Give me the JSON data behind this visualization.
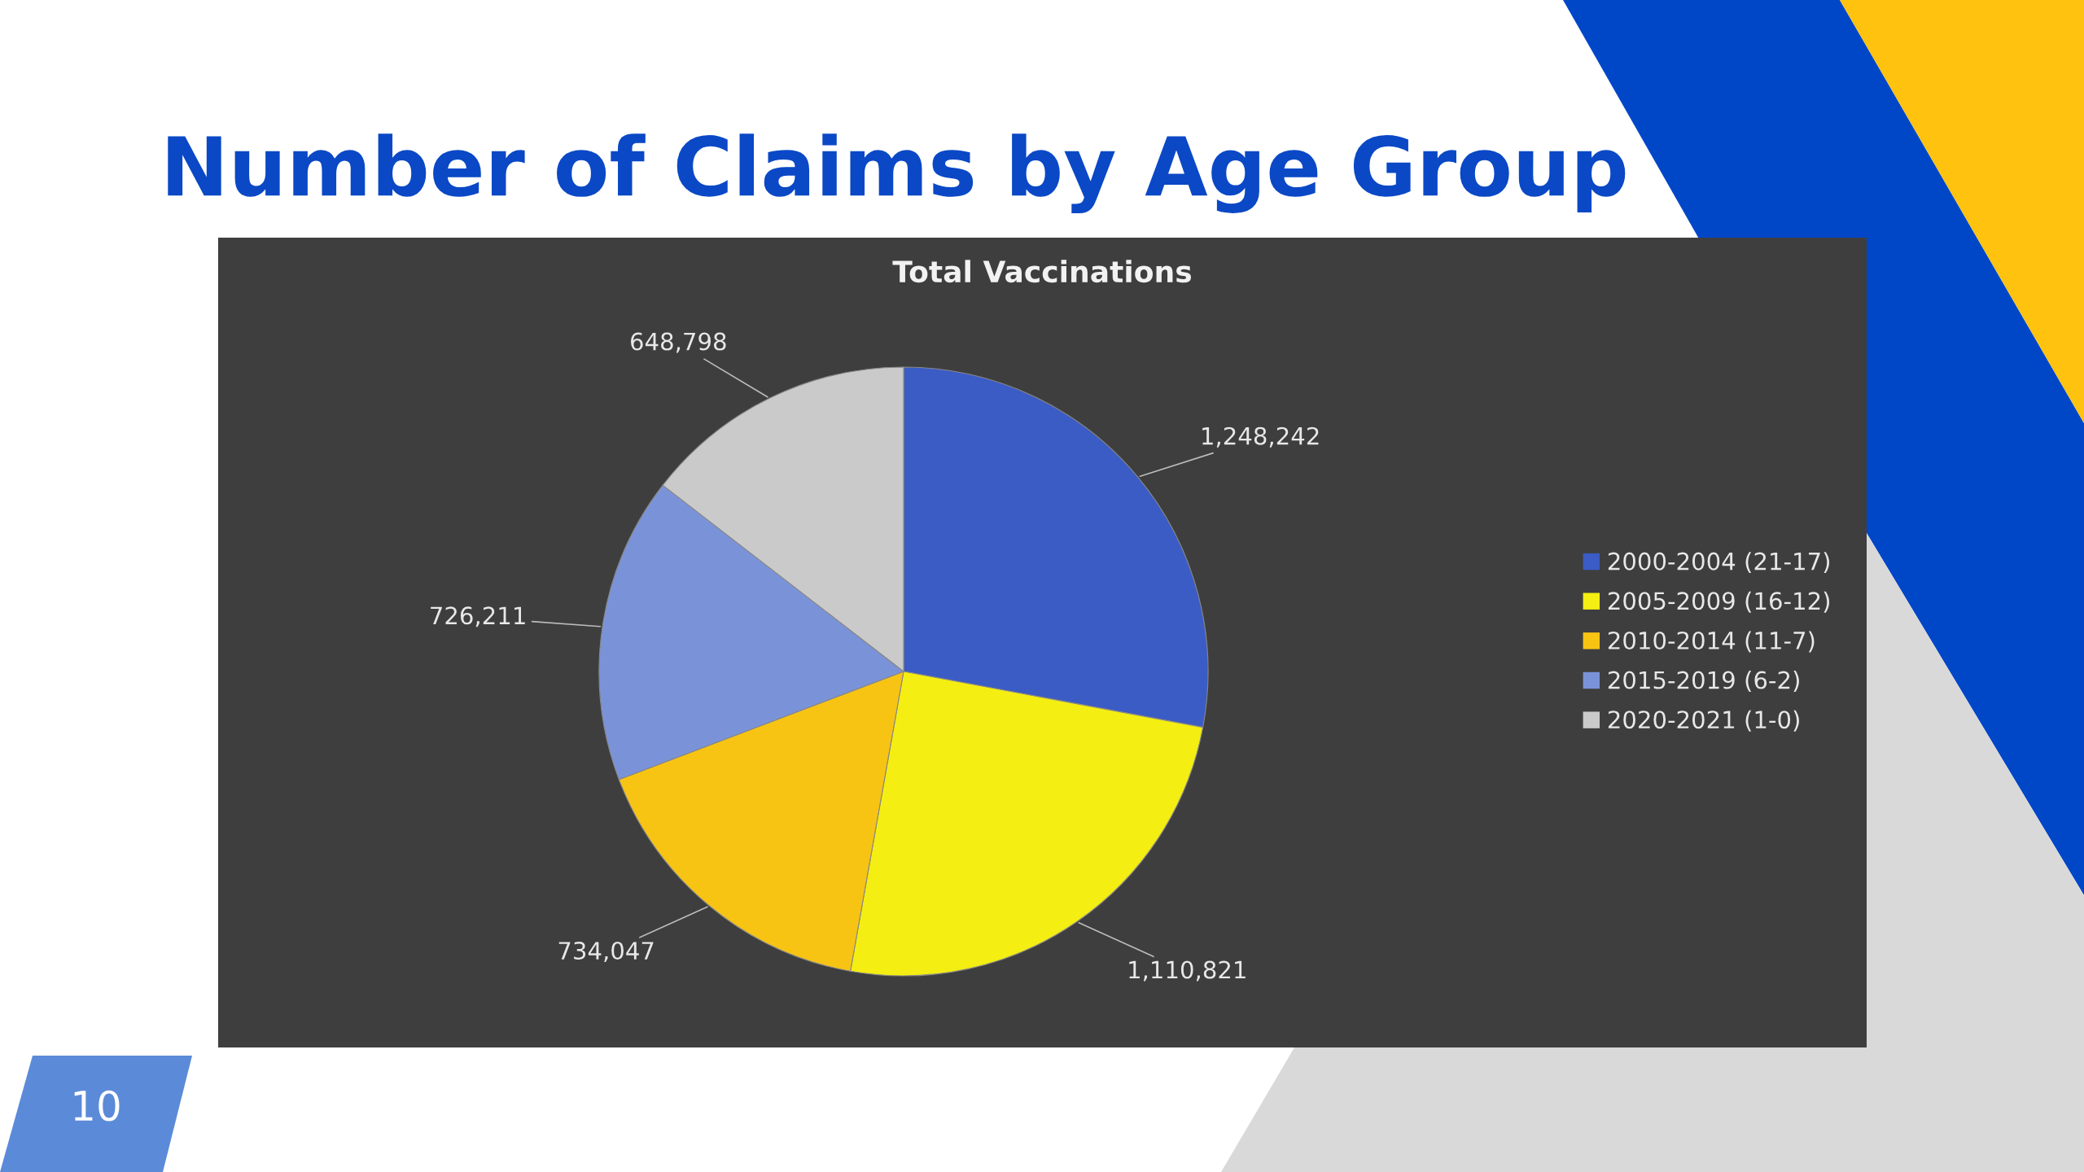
{
  "chart_data": {
    "type": "pie",
    "title": "Total Vaccinations",
    "subtitle": "Number of Claims by Age Group",
    "categories": [
      "2000-2004 (21-17)",
      "2005-2009 (16-12)",
      "2010-2014 (11-7)",
      "2015-2019 (6-2)",
      "2020-2021 (1-0)"
    ],
    "values": [
      1248242,
      1110821,
      734047,
      726211,
      648798
    ],
    "value_labels": [
      "1,248,242",
      "1,110,821",
      "734,047",
      "726,211",
      "648,798"
    ],
    "colors": [
      "#3b5cc4",
      "#f4ee12",
      "#f8c414",
      "#7a93d8",
      "#cacaca"
    ],
    "legend": "right",
    "annotations": [
      "10"
    ]
  }
}
